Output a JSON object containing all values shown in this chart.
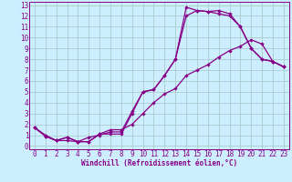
{
  "bg_color": "#cceeff",
  "grid_color": "#aacccc",
  "line_color": "#880088",
  "marker": "D",
  "markersize": 2.2,
  "linewidth": 0.9,
  "xlabel": "Windchill (Refroidissement éolien,°C)",
  "xlabel_fontsize": 5.5,
  "tick_fontsize": 5.5,
  "xlim": [
    -0.5,
    23.5
  ],
  "ylim": [
    -0.3,
    13.3
  ],
  "xticks": [
    0,
    1,
    2,
    3,
    4,
    5,
    6,
    7,
    8,
    9,
    10,
    11,
    12,
    13,
    14,
    15,
    16,
    17,
    18,
    19,
    20,
    21,
    22,
    23
  ],
  "yticks": [
    0,
    1,
    2,
    3,
    4,
    5,
    6,
    7,
    8,
    9,
    10,
    11,
    12,
    13
  ],
  "line1_x": [
    0,
    1,
    2,
    3,
    4,
    5,
    6,
    7,
    8,
    9,
    10,
    11,
    12,
    13,
    14,
    15,
    16,
    17,
    18,
    19,
    20,
    21,
    22,
    23
  ],
  "line1_y": [
    1.7,
    1.0,
    0.5,
    0.5,
    0.4,
    0.4,
    1.1,
    1.1,
    1.1,
    3.0,
    5.0,
    5.2,
    6.5,
    8.0,
    12.0,
    12.5,
    12.4,
    12.2,
    12.0,
    11.0,
    9.0,
    8.0,
    7.8,
    7.3
  ],
  "line2_x": [
    0,
    1,
    2,
    3,
    4,
    5,
    6,
    7,
    8,
    9,
    10,
    11,
    12,
    13,
    14,
    15,
    16,
    17,
    18,
    19,
    20,
    21,
    22,
    23
  ],
  "line2_y": [
    1.7,
    0.9,
    0.5,
    0.8,
    0.4,
    0.8,
    1.0,
    1.3,
    1.3,
    3.2,
    5.0,
    5.2,
    6.5,
    8.0,
    12.8,
    12.5,
    12.4,
    12.5,
    12.2,
    11.0,
    9.0,
    8.0,
    7.8,
    7.3
  ],
  "line3_x": [
    0,
    1,
    2,
    3,
    4,
    5,
    6,
    7,
    8,
    9,
    10,
    11,
    12,
    13,
    14,
    15,
    16,
    17,
    18,
    19,
    20,
    21,
    22,
    23
  ],
  "line3_y": [
    1.7,
    0.9,
    0.5,
    0.8,
    0.4,
    0.4,
    1.1,
    1.5,
    1.5,
    2.0,
    3.0,
    4.0,
    4.8,
    5.3,
    6.5,
    7.0,
    7.5,
    8.2,
    8.8,
    9.2,
    9.8,
    9.4,
    7.8,
    7.3
  ]
}
